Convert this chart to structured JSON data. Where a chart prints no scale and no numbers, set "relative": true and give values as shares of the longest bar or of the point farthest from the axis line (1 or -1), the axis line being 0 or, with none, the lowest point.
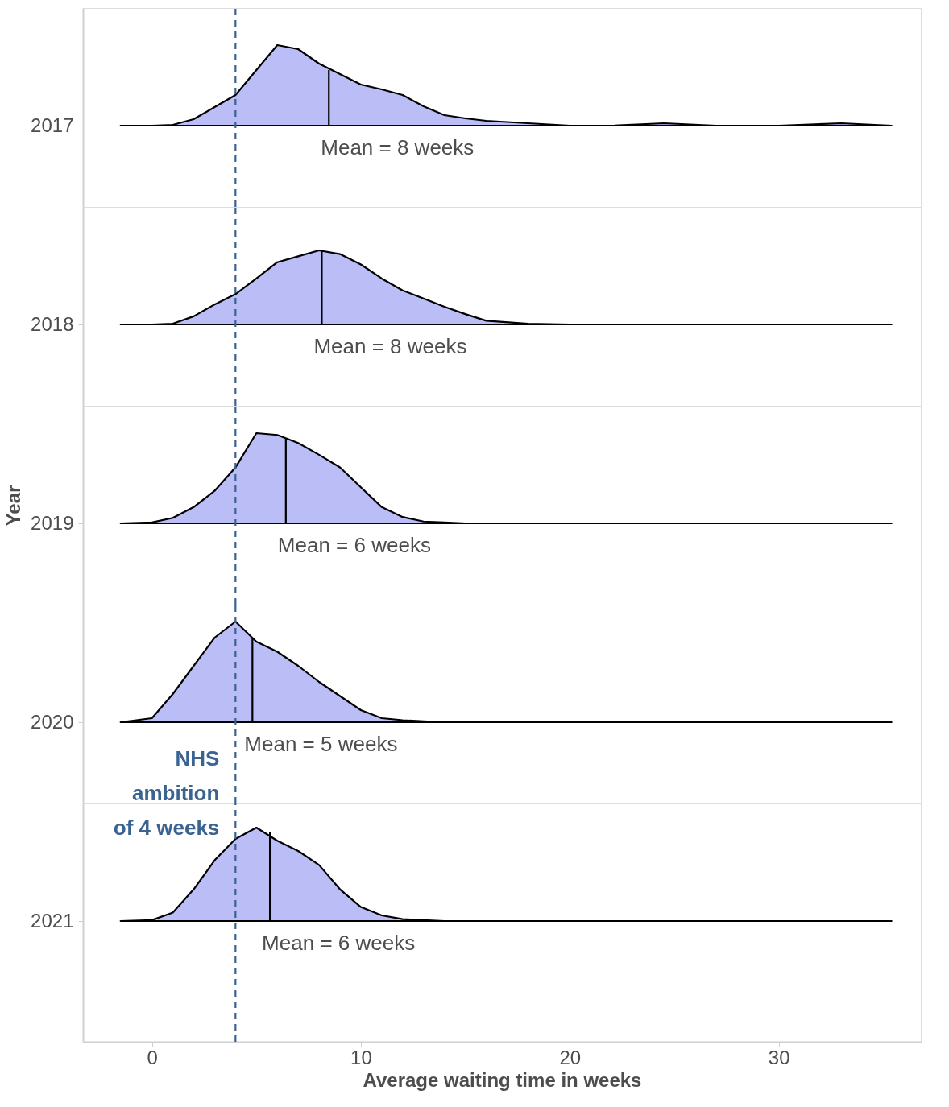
{
  "chart_data": [
    {
      "type": "area",
      "relative": true,
      "tick_labels": "y",
      "xlim": [
        -3.3,
        36.8
      ],
      "x": [
        -1.5,
        0,
        1,
        2,
        3,
        4,
        5,
        6,
        7,
        8,
        9,
        10,
        11,
        12,
        13,
        14,
        15,
        16,
        18,
        20,
        22,
        24.5,
        27,
        30,
        33,
        35.4
      ],
      "series": [
        {
          "name": "2017",
          "color": "#bbbdf6",
          "values": [
            0,
            0,
            0.01,
            0.08,
            0.23,
            0.38,
            0.69,
            1,
            0.95,
            0.77,
            0.64,
            0.51,
            0.45,
            0.38,
            0.24,
            0.13,
            0.09,
            0.06,
            0.03,
            0,
            0,
            0.03,
            0,
            0,
            0.03,
            0
          ]
        }
      ],
      "ref_lines": [
        {
          "axis": "x",
          "value": 4,
          "color": "#3a6391",
          "line_style": "dashed"
        }
      ],
      "annotations": [
        {
          "text": "Mean = 8 weeks",
          "x": 8.47,
          "y": 0.69
        }
      ]
    },
    {
      "type": "area",
      "relative": true,
      "tick_labels": "y",
      "xlim": [
        -3.3,
        36.8
      ],
      "x": [
        -1.5,
        0,
        1,
        2,
        3,
        4,
        5,
        6,
        7,
        8,
        9,
        10,
        11,
        12,
        13,
        14,
        15,
        16,
        18,
        20,
        22,
        24.5,
        27,
        30,
        33,
        35.4
      ],
      "series": [
        {
          "name": "2018",
          "color": "#bbbdf6",
          "values": [
            0,
            0,
            0.01,
            0.11,
            0.27,
            0.41,
            0.62,
            0.84,
            0.92,
            1,
            0.95,
            0.81,
            0.62,
            0.46,
            0.35,
            0.24,
            0.14,
            0.05,
            0.01,
            0,
            0,
            0,
            0,
            0,
            0,
            0
          ]
        }
      ],
      "ref_lines": [
        {
          "axis": "x",
          "value": 4,
          "color": "#3a6391",
          "line_style": "dashed"
        }
      ],
      "annotations": [
        {
          "text": "Mean = 8 weeks",
          "x": 8.13,
          "y": 0.99
        }
      ]
    },
    {
      "type": "area",
      "relative": true,
      "tick_labels": "y",
      "xlim": [
        -3.3,
        36.8
      ],
      "ylabel": "Year",
      "x": [
        -1.5,
        0,
        1,
        2,
        3,
        4,
        5,
        6,
        7,
        8,
        9,
        10,
        11,
        12,
        13,
        14,
        15,
        16,
        18,
        20,
        22,
        24.5,
        27,
        30,
        33,
        35.4
      ],
      "series": [
        {
          "name": "2019",
          "color": "#bbbdf6",
          "values": [
            0,
            0.01,
            0.06,
            0.18,
            0.36,
            0.62,
            1,
            0.98,
            0.89,
            0.76,
            0.62,
            0.4,
            0.18,
            0.07,
            0.02,
            0.01,
            0,
            0,
            0,
            0,
            0,
            0,
            0,
            0,
            0,
            0
          ]
        }
      ],
      "ref_lines": [
        {
          "axis": "x",
          "value": 4,
          "color": "#3a6391",
          "line_style": "dashed"
        }
      ],
      "annotations": [
        {
          "text": "Mean = 6 weeks",
          "x": 6.41,
          "y": 0.94
        }
      ]
    },
    {
      "type": "area",
      "relative": true,
      "tick_labels": "y",
      "xlim": [
        -3.3,
        36.8
      ],
      "x": [
        -1.5,
        0,
        1,
        2,
        3,
        4,
        5,
        6,
        7,
        8,
        9,
        10,
        11,
        12,
        13,
        14,
        15,
        16,
        18,
        20,
        22,
        24.5,
        27,
        30,
        33,
        35.4
      ],
      "series": [
        {
          "name": "2020",
          "color": "#bbbdf6",
          "values": [
            0,
            0.04,
            0.28,
            0.56,
            0.84,
            1,
            0.8,
            0.7,
            0.56,
            0.4,
            0.26,
            0.12,
            0.04,
            0.02,
            0.01,
            0,
            0,
            0,
            0,
            0,
            0,
            0,
            0,
            0,
            0,
            0
          ]
        }
      ],
      "ref_lines": [
        {
          "axis": "x",
          "value": 4,
          "color": "#3a6391",
          "line_style": "dashed"
        }
      ],
      "annotations": [
        {
          "text": "Mean = 5 weeks",
          "x": 4.81,
          "y": 0.84
        }
      ]
    },
    {
      "type": "area",
      "relative": true,
      "xlim": [
        -3.3,
        36.8
      ],
      "xticks": [
        0,
        10,
        20,
        30
      ],
      "xlabel": "Average waiting time in weeks",
      "x": [
        -1.5,
        0,
        1,
        2,
        3,
        4,
        5,
        6,
        7,
        8,
        9,
        10,
        11,
        12,
        13,
        14,
        15,
        16,
        18,
        20,
        22,
        24.5,
        27,
        30,
        33,
        35.4
      ],
      "series": [
        {
          "name": "2021",
          "color": "#bbbdf6",
          "values": [
            0,
            0.01,
            0.09,
            0.34,
            0.65,
            0.88,
            1,
            0.86,
            0.75,
            0.6,
            0.34,
            0.15,
            0.06,
            0.02,
            0.01,
            0,
            0,
            0,
            0,
            0,
            0,
            0,
            0,
            0,
            0,
            0
          ]
        }
      ],
      "ref_lines": [
        {
          "axis": "x",
          "value": 4,
          "label": "NHS ambition of 4 weeks",
          "color": "#3a6391",
          "line_style": "dashed"
        }
      ],
      "annotations": [
        {
          "text": "Mean = 6 weeks",
          "x": 5.65,
          "y": 0.95
        }
      ]
    }
  ]
}
